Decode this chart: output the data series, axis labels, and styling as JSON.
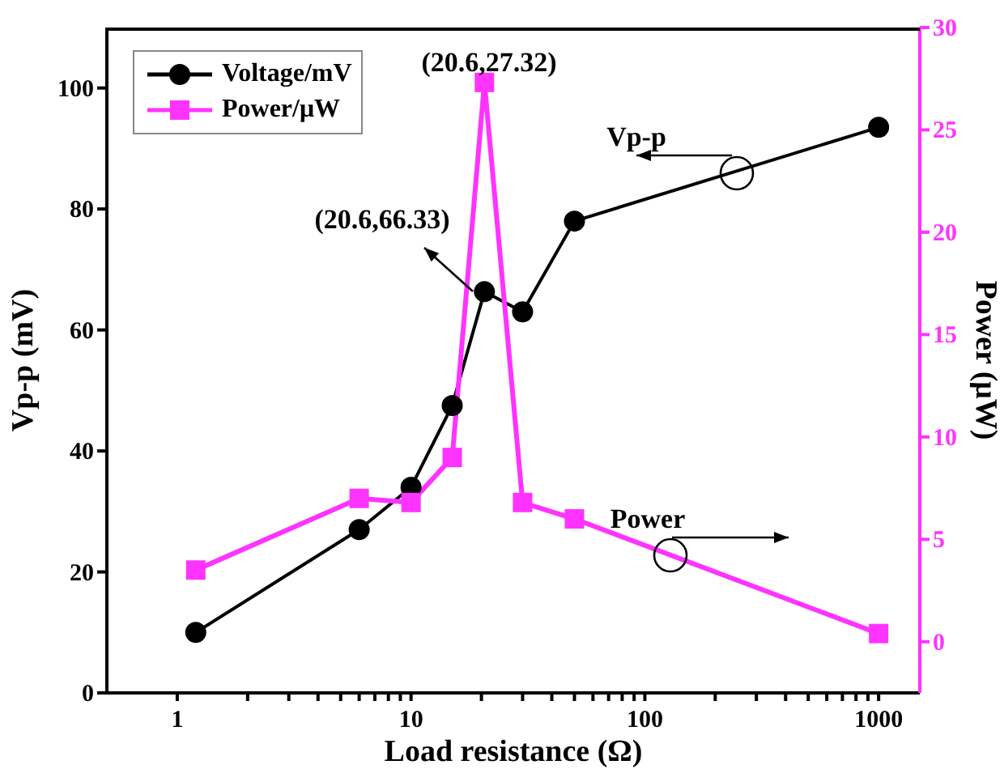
{
  "chart_data": {
    "type": "line",
    "xlabel": "Load resistance (Ω)",
    "ylabel": "Vp-p (mV)",
    "y2label": "Power (μW)",
    "x": [
      1.2,
      6,
      10,
      15,
      20.6,
      30,
      50,
      1000
    ],
    "series": [
      {
        "name": "Voltage/mV",
        "color": "#000000",
        "marker": "circle",
        "values": [
          10,
          27,
          34,
          47.5,
          66.33,
          63,
          78,
          93.5
        ]
      },
      {
        "name": "Power/μW",
        "color": "#ff33ff",
        "marker": "square",
        "axis": "y2",
        "values": [
          3.5,
          7.0,
          6.8,
          9.0,
          27.32,
          6.8,
          6.0,
          0.4
        ]
      }
    ],
    "log": "x",
    "xlim": [
      0.5,
      1500
    ],
    "xticks": [
      1,
      {
        "value": 2,
        "label": null
      },
      {
        "value": 3,
        "label": null
      },
      {
        "value": 4,
        "label": null
      },
      {
        "value": 5,
        "label": null
      },
      {
        "value": 6,
        "label": null
      },
      {
        "value": 7,
        "label": null
      },
      {
        "value": 8,
        "label": null
      },
      {
        "value": 9,
        "label": null
      },
      10,
      {
        "value": 20,
        "label": null
      },
      {
        "value": 30,
        "label": null
      },
      {
        "value": 40,
        "label": null
      },
      {
        "value": 50,
        "label": null
      },
      {
        "value": 60,
        "label": null
      },
      {
        "value": 70,
        "label": null
      },
      {
        "value": 80,
        "label": null
      },
      {
        "value": 90,
        "label": null
      },
      100,
      {
        "value": 200,
        "label": null
      },
      {
        "value": 300,
        "label": null
      },
      {
        "value": 400,
        "label": null
      },
      {
        "value": 500,
        "label": null
      },
      {
        "value": 600,
        "label": null
      },
      {
        "value": 700,
        "label": null
      },
      {
        "value": 800,
        "label": null
      },
      {
        "value": 900,
        "label": null
      },
      1000
    ],
    "ylim": [
      0,
      110
    ],
    "yticks": [
      0,
      20,
      40,
      60,
      80,
      100
    ],
    "y2lim": [
      -2.5,
      30
    ],
    "y2ticks": [
      0,
      5,
      10,
      15,
      20,
      25,
      30
    ],
    "legend": "top left",
    "annotations": [
      "(20.6,27.32)",
      "(20.6,66.33)",
      "Vp-p",
      "Power"
    ]
  }
}
